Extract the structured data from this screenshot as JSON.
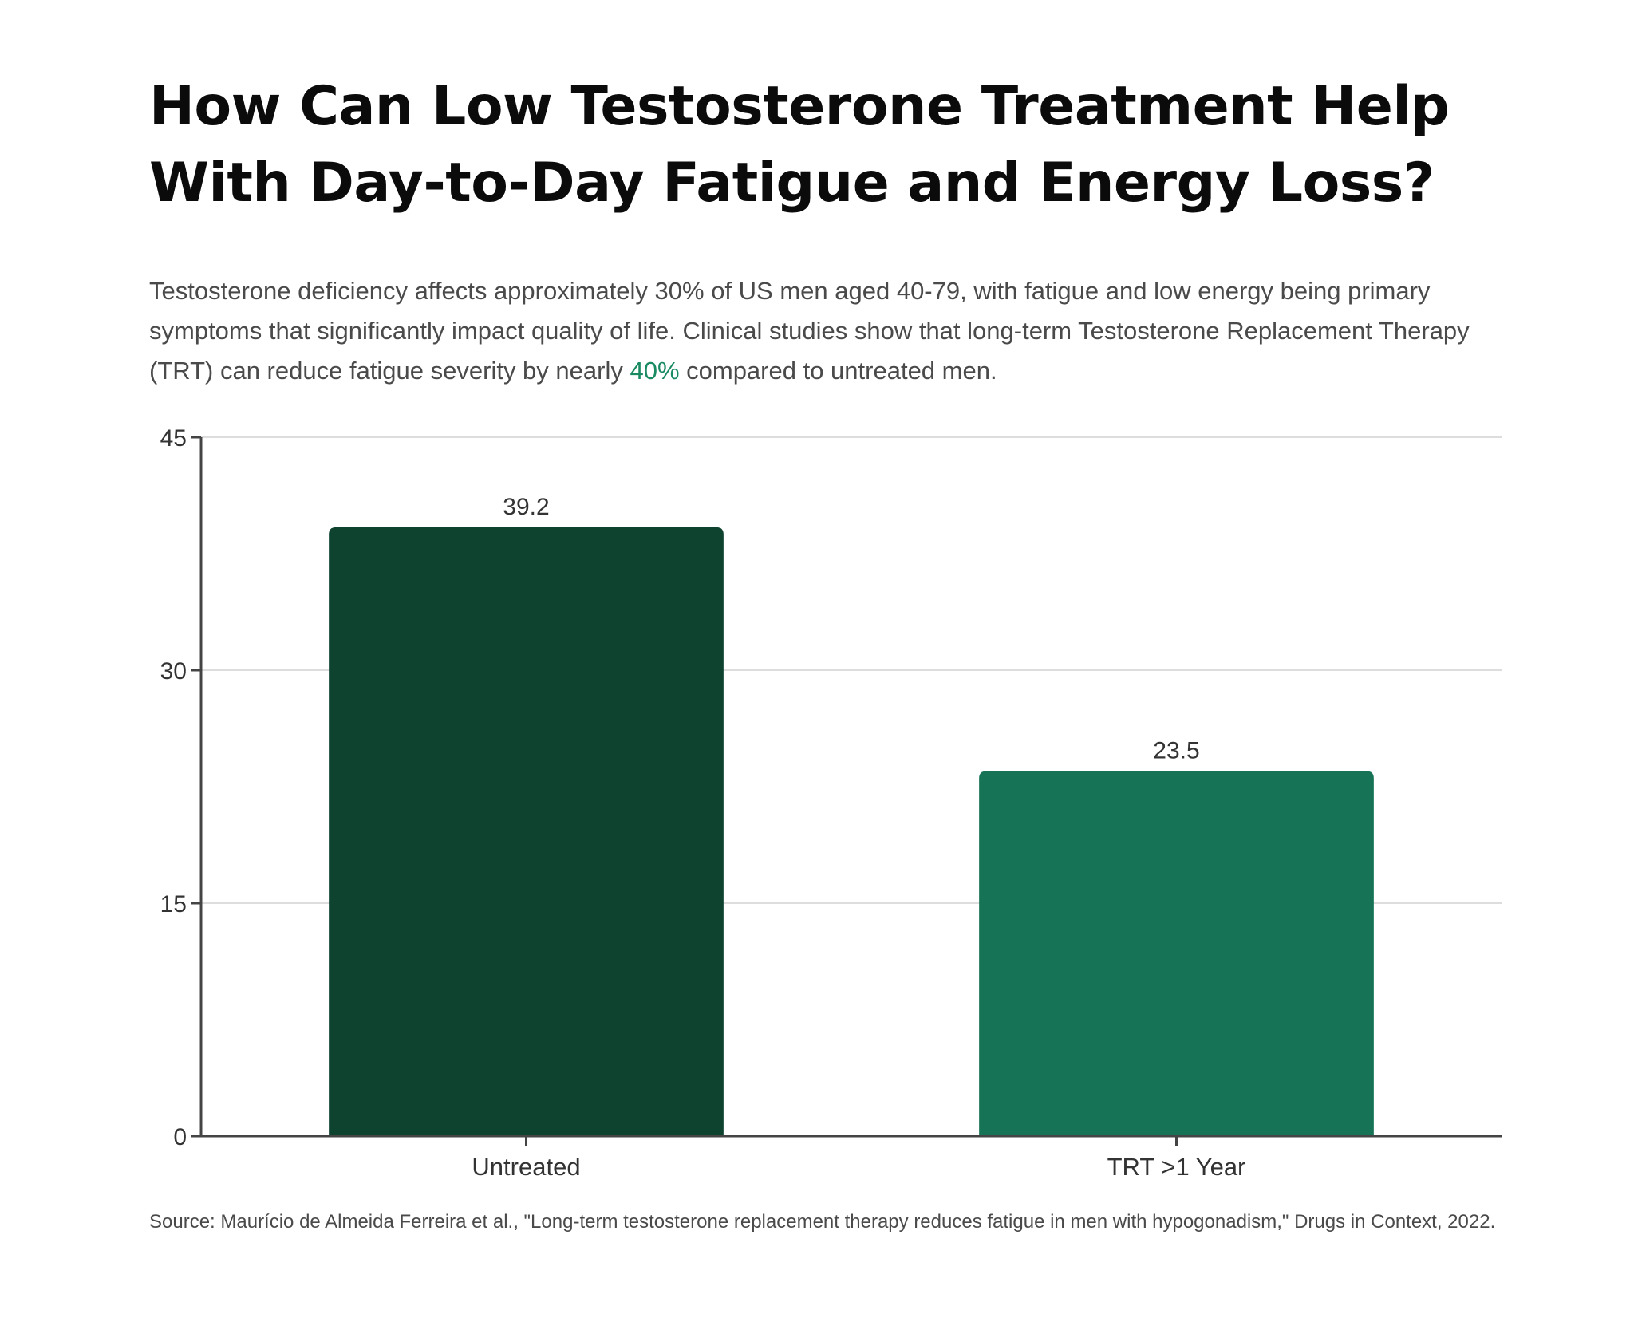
{
  "title_lines": [
    "How Can Low Testosterone Treatment Help",
    "With Day-to-Day Fatigue and Energy Loss?"
  ],
  "description": {
    "before": "Testosterone deficiency affects approximately 30% of US men aged 40-79, with fatigue and low energy being primary symptoms that significantly impact quality of life. Clinical studies show that long-term Testosterone Replacement Therapy (TRT) can reduce fatigue severity by nearly ",
    "highlight": "40%",
    "after": " compared to untreated men."
  },
  "source": "Source: Maurício de Almeida Ferreira et al., \"Long-term testosterone replacement therapy reduces fatigue in men with hypogonadism,\" Drugs in Context, 2022.",
  "colors": {
    "bar_untreated": "#0e4330",
    "bar_trt": "#177356",
    "highlight": "#1a8a62",
    "gridline": "#dddddd",
    "axis": "#444444"
  },
  "chart_data": {
    "type": "bar",
    "categories": [
      "Untreated",
      "TRT >1 Year"
    ],
    "values": [
      39.2,
      23.5
    ],
    "value_labels": [
      "39.2",
      "23.5"
    ],
    "yticks": [
      0,
      15,
      30,
      45
    ],
    "ytick_labels": [
      "0",
      "15",
      "30",
      "45"
    ],
    "ylim": [
      0,
      45
    ],
    "grid": true,
    "title": "",
    "xlabel": "",
    "ylabel": ""
  }
}
